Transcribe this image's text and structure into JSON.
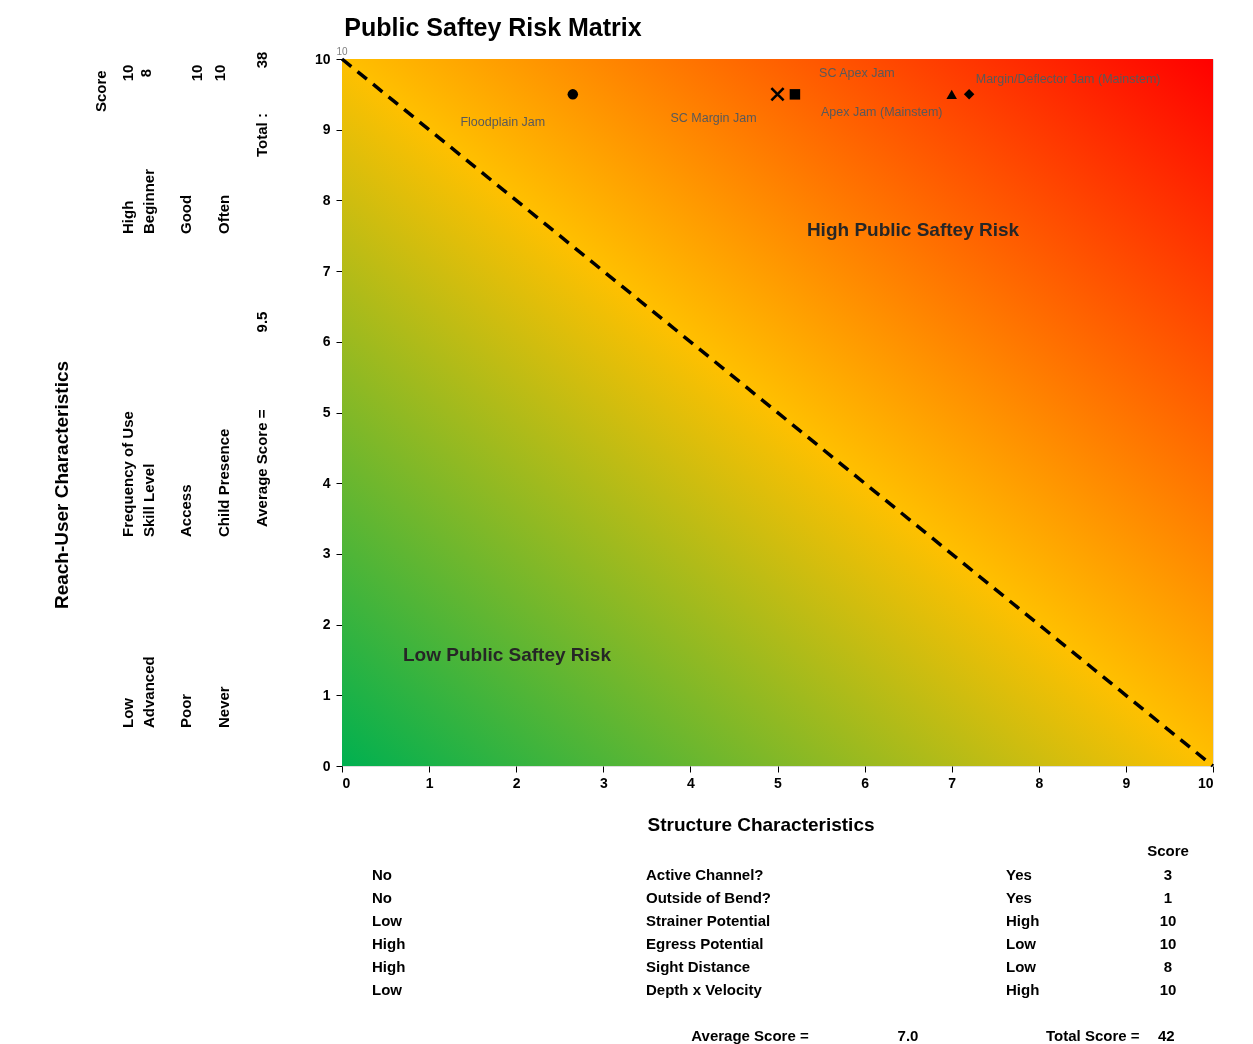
{
  "chart_data": {
    "type": "scatter",
    "title": "Public Saftey Risk Matrix",
    "xlabel": "Structure Characteristics",
    "xlim": [
      0,
      10
    ],
    "xticks": [
      0,
      1,
      2,
      3,
      4,
      5,
      6,
      7,
      8,
      9,
      10
    ],
    "ylim": [
      0,
      10
    ],
    "yticks": [
      0,
      1,
      2,
      3,
      4,
      5,
      6,
      7,
      8,
      9,
      10
    ],
    "grid": false,
    "legend": false,
    "series": [
      {
        "name": "Floodplain Jam",
        "color": "#000000",
        "marker": "circle",
        "x": [
          2.65
        ],
        "values": [
          9.5
        ]
      },
      {
        "name": "SC Margin Jam",
        "color": "#000000",
        "marker": "cross",
        "x": [
          5.0
        ],
        "values": [
          9.5
        ]
      },
      {
        "name": "SC Apex Jam",
        "color": "#000000",
        "marker": "square",
        "x": [
          5.2
        ],
        "values": [
          9.5
        ]
      },
      {
        "name": "Apex Jam (Mainstem)",
        "color": "#000000",
        "marker": "triangle",
        "x": [
          7.0
        ],
        "values": [
          9.5
        ]
      },
      {
        "name": "Margin/Deflector Jam (Mainstem)",
        "color": "#000000",
        "marker": "diamond",
        "x": [
          7.2
        ],
        "values": [
          9.5
        ]
      },
      {
        "type": "line",
        "color": "#000000",
        "line_style": "dashed",
        "marker": "none",
        "x": [
          0,
          10
        ],
        "values": [
          10,
          0
        ]
      }
    ],
    "annotations": [
      "High Public Saftey Risk",
      "Low Public Saftey Risk",
      {
        "text": "10",
        "x": 0,
        "y": 10
      },
      "Score",
      "No",
      "Active Channel?",
      "Yes",
      "3",
      "No",
      "Outside of Bend?",
      "Yes",
      "1",
      "Low",
      "Strainer Potential",
      "High",
      "10",
      "High",
      "Egress Potential",
      "Low",
      "10",
      "High",
      "Sight Distance",
      "Low",
      "8",
      "Low",
      "Depth x Velocity",
      "High",
      "10",
      "Average Score =",
      "7.0",
      "Total Score =",
      "42",
      "Score",
      "10",
      "8",
      "10",
      "10",
      "Low",
      "Frequency of Use",
      "High",
      "Advanced",
      "Skill Level",
      "Beginner",
      "Poor",
      "Access",
      "Good",
      "Never",
      "Child Presence",
      "Often",
      "Total :",
      "38",
      "Average Score =",
      "9.5",
      "Reach-User Characteristics"
    ]
  }
}
